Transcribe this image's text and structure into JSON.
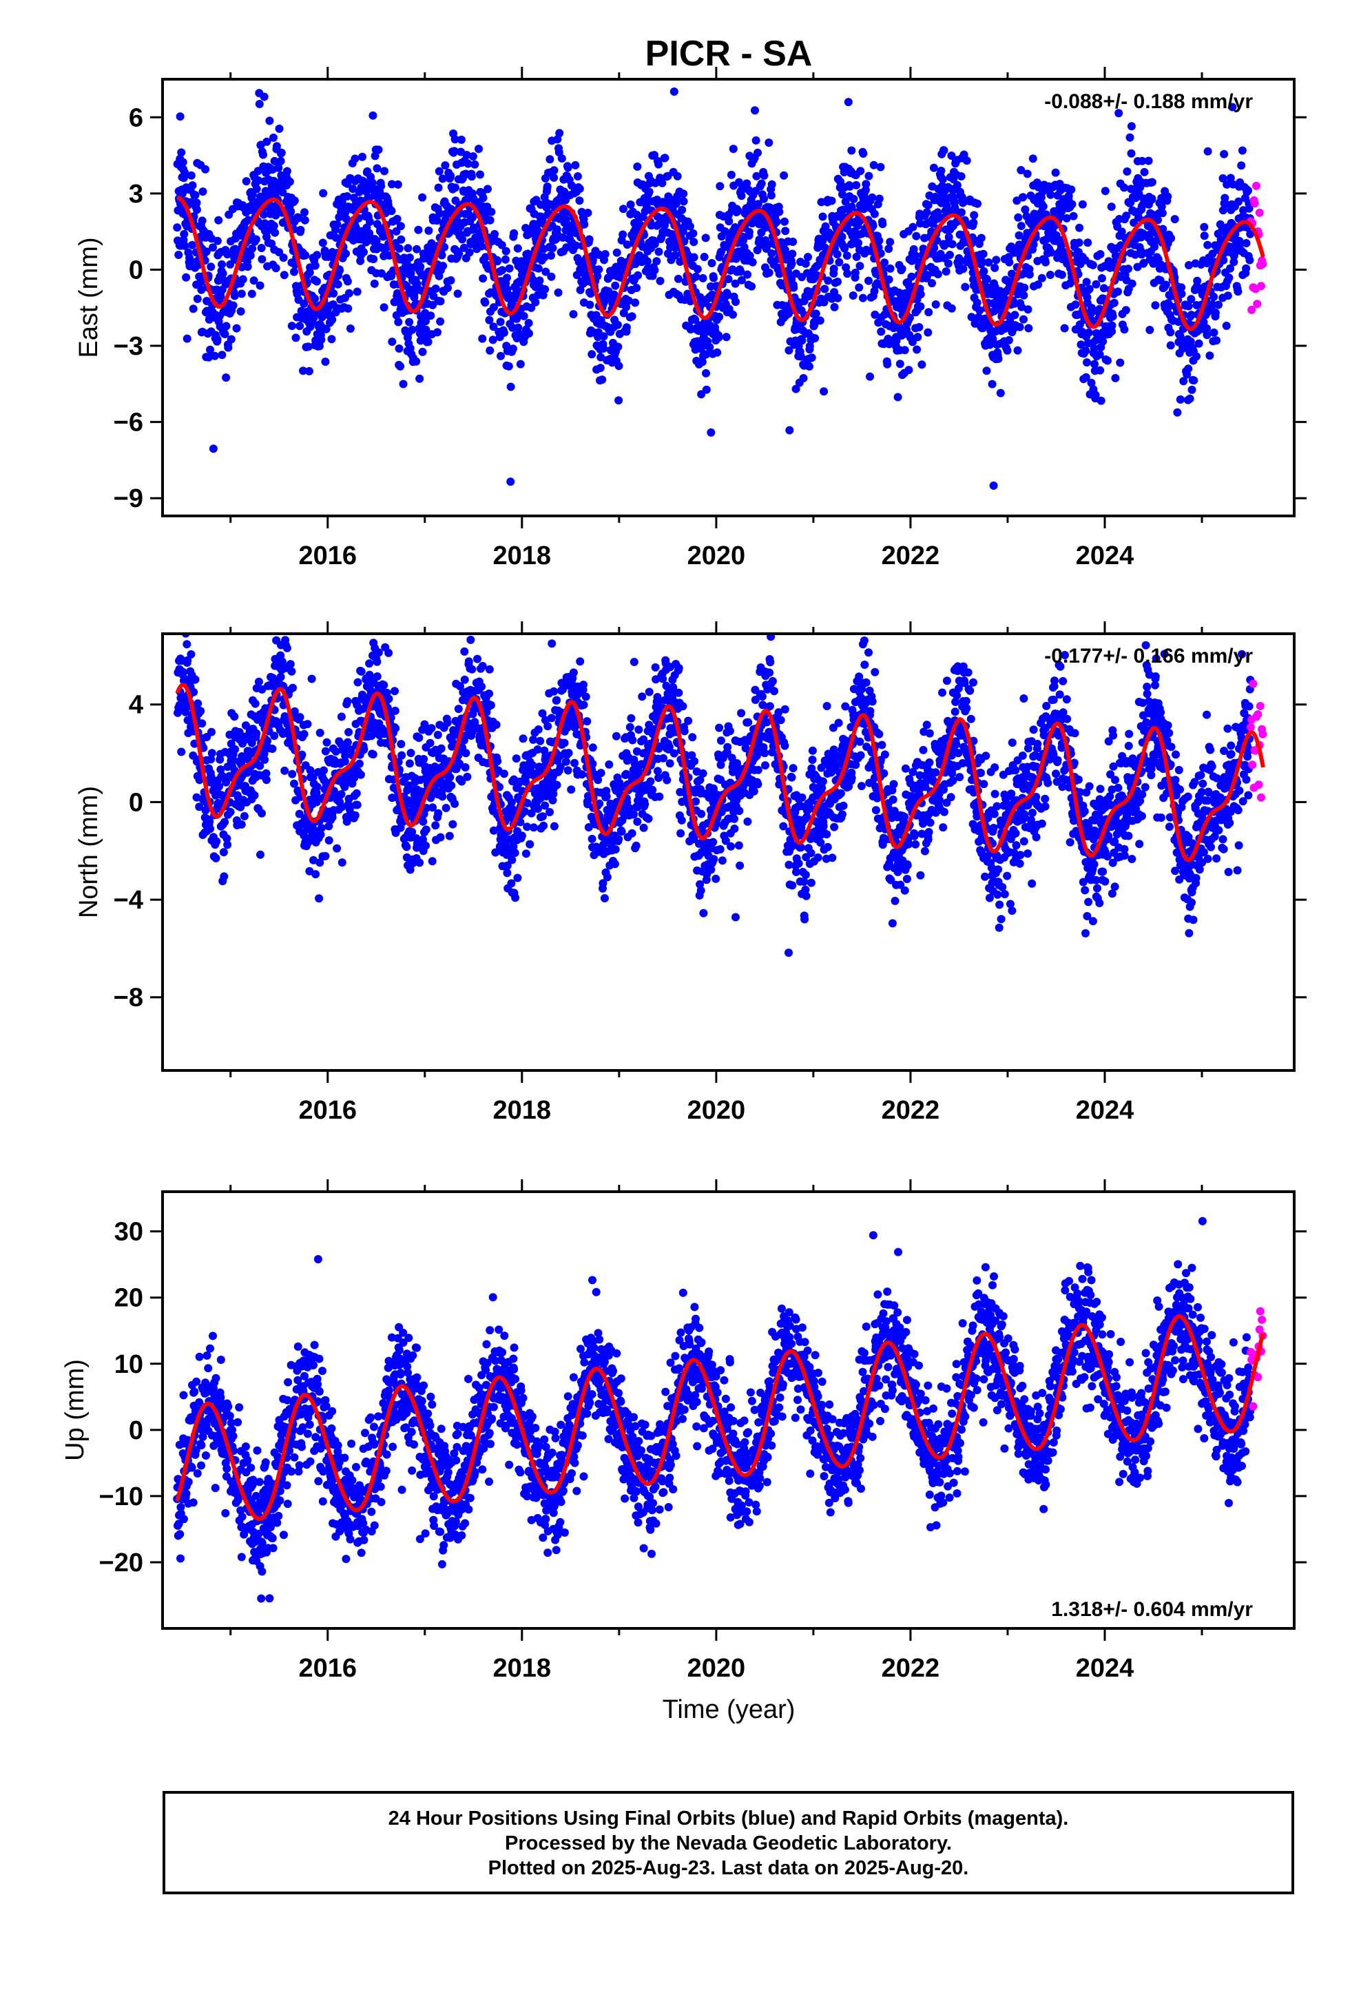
{
  "chart_data": [
    {
      "type": "scatter",
      "title": "PICR - SA",
      "ylabel": "East (mm)",
      "xlabel": "",
      "xlim": [
        2014.3,
        2025.95
      ],
      "ylim": [
        -9.7,
        7.5
      ],
      "xticks": [
        2016,
        2018,
        2020,
        2022,
        2024
      ],
      "yticks": [
        -9,
        -6,
        -3,
        0,
        3,
        6
      ],
      "grid": false,
      "rate_label": "-0.088+/- 0.188 mm/yr",
      "rate_label_position": "top-right",
      "model": {
        "offset": 0.45,
        "trend": -0.088,
        "trend_ref_year": 2020,
        "annual_amp": 2.1,
        "annual_phase_year": 0.4,
        "semiannual_amp": 0.3,
        "semiannual_phase_year": 0.1
      },
      "scatter": {
        "start": 2014.45,
        "end_final": 2025.5,
        "end_rapid": 2025.63,
        "scatter_sd": 1.35,
        "seed": 11
      },
      "series": [
        {
          "kind": "final-orbit-points",
          "color": "#0000ff"
        },
        {
          "kind": "rapid-orbit-points",
          "color": "#ff00ff"
        },
        {
          "kind": "model-curve",
          "color": "#ff0000"
        }
      ]
    },
    {
      "type": "scatter",
      "title": "",
      "ylabel": "North (mm)",
      "xlabel": "",
      "xlim": [
        2014.3,
        2025.95
      ],
      "ylim": [
        -11,
        6.9
      ],
      "xticks": [
        2016,
        2018,
        2020,
        2022,
        2024
      ],
      "yticks": [
        -8,
        -4,
        0,
        4
      ],
      "grid": false,
      "rate_label": "-0.177+/- 0.166 mm/yr",
      "rate_label_position": "top-right",
      "model": {
        "offset": 1.0,
        "trend": -0.177,
        "trend_ref_year": 2020,
        "annual_amp": 2.2,
        "annual_phase_year": 0.45,
        "semiannual_amp": 0.9,
        "semiannual_phase_year": 0.05
      },
      "scatter": {
        "start": 2014.45,
        "end_final": 2025.5,
        "end_rapid": 2025.63,
        "scatter_sd": 1.25,
        "seed": 23
      },
      "series": [
        {
          "kind": "final-orbit-points",
          "color": "#0000ff"
        },
        {
          "kind": "rapid-orbit-points",
          "color": "#ff00ff"
        },
        {
          "kind": "model-curve",
          "color": "#ff0000"
        }
      ]
    },
    {
      "type": "scatter",
      "title": "",
      "ylabel": "Up (mm)",
      "xlabel": "Time (year)",
      "xlim": [
        2014.3,
        2025.95
      ],
      "ylim": [
        -30,
        36
      ],
      "xticks": [
        2016,
        2018,
        2020,
        2022,
        2024
      ],
      "yticks": [
        -20,
        -10,
        0,
        10,
        20,
        30
      ],
      "grid": false,
      "rate_label": "1.318+/- 0.604 mm/yr",
      "rate_label_position": "bottom-right",
      "model": {
        "offset": 1.5,
        "trend": 1.318,
        "trend_ref_year": 2020,
        "annual_amp": 9.0,
        "annual_phase_year": 0.78,
        "semiannual_amp": 0.6,
        "semiannual_phase_year": 0.2
      },
      "scatter": {
        "start": 2014.45,
        "end_final": 2025.5,
        "end_rapid": 2025.63,
        "scatter_sd": 4.2,
        "seed": 37
      },
      "series": [
        {
          "kind": "final-orbit-points",
          "color": "#0000ff"
        },
        {
          "kind": "rapid-orbit-points",
          "color": "#ff00ff"
        },
        {
          "kind": "model-curve",
          "color": "#ff0000"
        }
      ]
    }
  ],
  "footer": {
    "line1": "24 Hour Positions Using Final Orbits (blue) and Rapid Orbits (magenta).",
    "line2": "Processed by the Nevada Geodetic Laboratory.",
    "line3": "Plotted on 2025-Aug-23. Last data on 2025-Aug-20."
  }
}
